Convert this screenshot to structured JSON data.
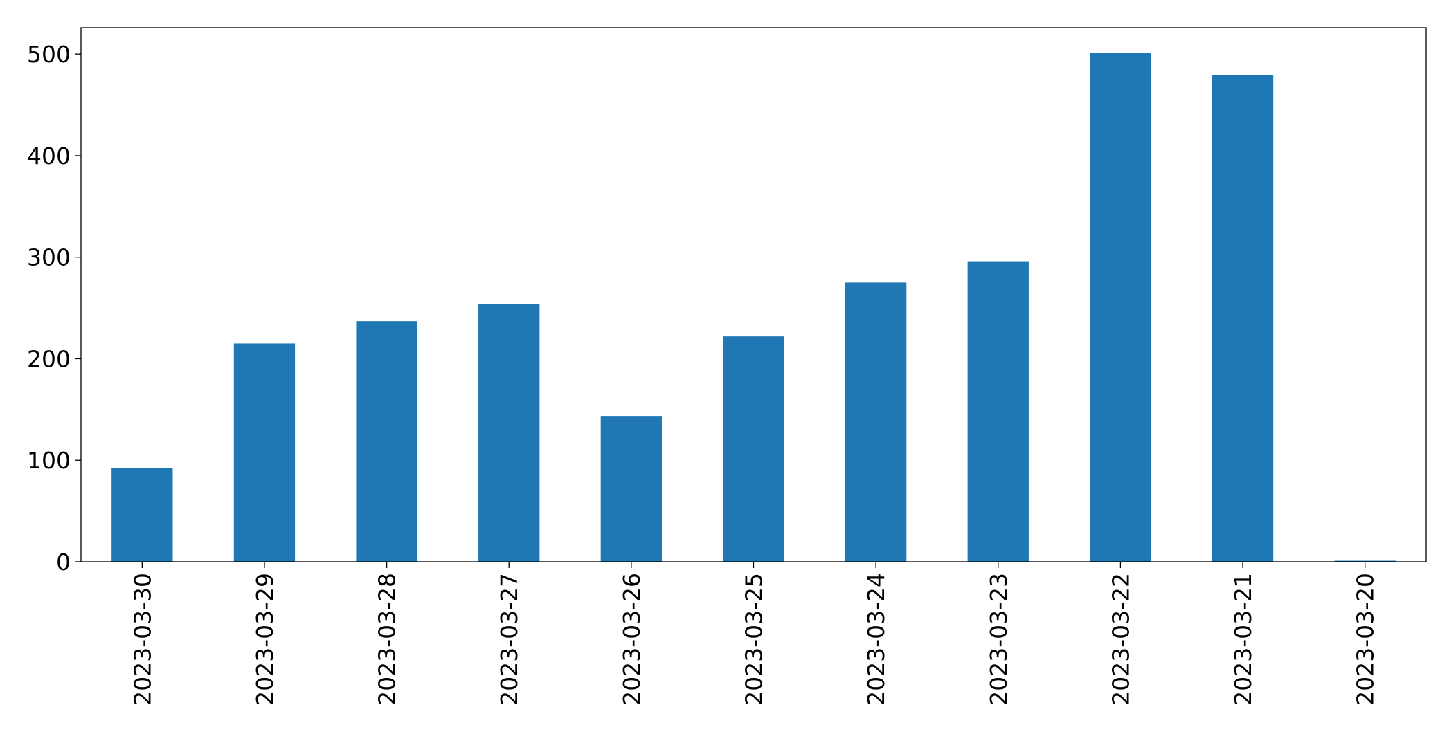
{
  "chart_data": {
    "type": "bar",
    "title": "",
    "xlabel": "",
    "ylabel": "",
    "categories": [
      "2023-03-30",
      "2023-03-29",
      "2023-03-28",
      "2023-03-27",
      "2023-03-26",
      "2023-03-25",
      "2023-03-24",
      "2023-03-23",
      "2023-03-22",
      "2023-03-21",
      "2023-03-20"
    ],
    "values": [
      92,
      215,
      237,
      254,
      143,
      222,
      275,
      296,
      501,
      479,
      1
    ],
    "ylim": [
      0,
      526
    ],
    "yticks": [
      0,
      100,
      200,
      300,
      400,
      500
    ],
    "grid": false,
    "legend": "none",
    "bar_color": "#1f77b4"
  }
}
